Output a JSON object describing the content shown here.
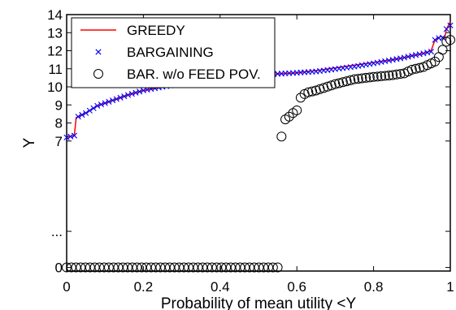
{
  "chart_data": {
    "type": "line",
    "title": "",
    "xlabel": "Probability of mean utility <Y",
    "ylabel": "Y",
    "xlim": [
      0,
      1
    ],
    "ylim": [
      -0.2,
      14
    ],
    "grid": false,
    "legend_position": "top-left",
    "x_ticks": [
      {
        "value": 0,
        "label": "0"
      },
      {
        "value": 0.2,
        "label": "0.2"
      },
      {
        "value": 0.4,
        "label": "0.4"
      },
      {
        "value": 0.6,
        "label": "0.6"
      },
      {
        "value": 0.8,
        "label": "0.8"
      },
      {
        "value": 1,
        "label": "1"
      }
    ],
    "y_ticks": [
      {
        "value": 0,
        "label": "0"
      },
      {
        "value": 2,
        "label": "..."
      },
      {
        "value": 7,
        "label": "7"
      },
      {
        "value": 8,
        "label": "8"
      },
      {
        "value": 9,
        "label": "9"
      },
      {
        "value": 10,
        "label": "10"
      },
      {
        "value": 11,
        "label": "11"
      },
      {
        "value": 12,
        "label": "12"
      },
      {
        "value": 13,
        "label": "13"
      },
      {
        "value": 14,
        "label": "14"
      }
    ],
    "series": [
      {
        "name": "GREEDY",
        "style": "line",
        "color": "#ff0000",
        "points": [
          [
            0,
            7.2
          ],
          [
            0.02,
            7.3
          ],
          [
            0.025,
            8.3
          ],
          [
            0.05,
            8.55
          ],
          [
            0.08,
            8.95
          ],
          [
            0.12,
            9.25
          ],
          [
            0.16,
            9.55
          ],
          [
            0.2,
            9.8
          ],
          [
            0.25,
            10.0
          ],
          [
            0.3,
            10.2
          ],
          [
            0.35,
            10.35
          ],
          [
            0.4,
            10.45
          ],
          [
            0.45,
            10.55
          ],
          [
            0.5,
            10.65
          ],
          [
            0.55,
            10.72
          ],
          [
            0.6,
            10.78
          ],
          [
            0.65,
            10.9
          ],
          [
            0.7,
            11.05
          ],
          [
            0.75,
            11.2
          ],
          [
            0.8,
            11.35
          ],
          [
            0.85,
            11.5
          ],
          [
            0.88,
            11.62
          ],
          [
            0.9,
            11.72
          ],
          [
            0.93,
            11.85
          ],
          [
            0.95,
            12.0
          ],
          [
            0.96,
            12.6
          ],
          [
            0.975,
            12.8
          ],
          [
            0.985,
            12.7
          ],
          [
            0.99,
            13.2
          ],
          [
            1.0,
            13.6
          ]
        ]
      },
      {
        "name": "BARGAINING",
        "style": "x",
        "color": "#0000ff",
        "points": [
          [
            0,
            7.2
          ],
          [
            0.02,
            7.3
          ],
          [
            0.025,
            8.3
          ],
          [
            0.05,
            8.55
          ],
          [
            0.08,
            8.95
          ],
          [
            0.12,
            9.25
          ],
          [
            0.16,
            9.55
          ],
          [
            0.2,
            9.8
          ],
          [
            0.25,
            10.0
          ],
          [
            0.3,
            10.2
          ],
          [
            0.35,
            10.35
          ],
          [
            0.4,
            10.45
          ],
          [
            0.45,
            10.55
          ],
          [
            0.5,
            10.65
          ],
          [
            0.55,
            10.72
          ],
          [
            0.6,
            10.78
          ],
          [
            0.65,
            10.85
          ],
          [
            0.7,
            10.98
          ],
          [
            0.75,
            11.12
          ],
          [
            0.8,
            11.3
          ],
          [
            0.85,
            11.5
          ],
          [
            0.88,
            11.62
          ],
          [
            0.9,
            11.72
          ],
          [
            0.93,
            11.85
          ],
          [
            0.95,
            11.95
          ],
          [
            0.96,
            12.6
          ],
          [
            0.975,
            12.75
          ],
          [
            0.985,
            12.7
          ],
          [
            0.99,
            13.2
          ],
          [
            1.0,
            13.4
          ]
        ]
      },
      {
        "name": "BAR. w/o FEED POV.",
        "style": "circle",
        "color": "#000000",
        "points": [
          [
            0,
            0
          ],
          [
            0.55,
            0
          ],
          [
            0.56,
            7.25
          ],
          [
            0.57,
            8.2
          ],
          [
            0.58,
            8.35
          ],
          [
            0.59,
            8.55
          ],
          [
            0.6,
            8.7
          ],
          [
            0.61,
            9.4
          ],
          [
            0.62,
            9.6
          ],
          [
            0.63,
            9.7
          ],
          [
            0.65,
            9.8
          ],
          [
            0.7,
            10.15
          ],
          [
            0.75,
            10.42
          ],
          [
            0.8,
            10.55
          ],
          [
            0.85,
            10.65
          ],
          [
            0.88,
            10.75
          ],
          [
            0.9,
            10.95
          ],
          [
            0.93,
            11.1
          ],
          [
            0.95,
            11.3
          ],
          [
            0.96,
            11.4
          ],
          [
            0.97,
            11.65
          ],
          [
            0.98,
            12.05
          ],
          [
            0.99,
            12.5
          ],
          [
            1.0,
            12.6
          ]
        ]
      }
    ]
  }
}
